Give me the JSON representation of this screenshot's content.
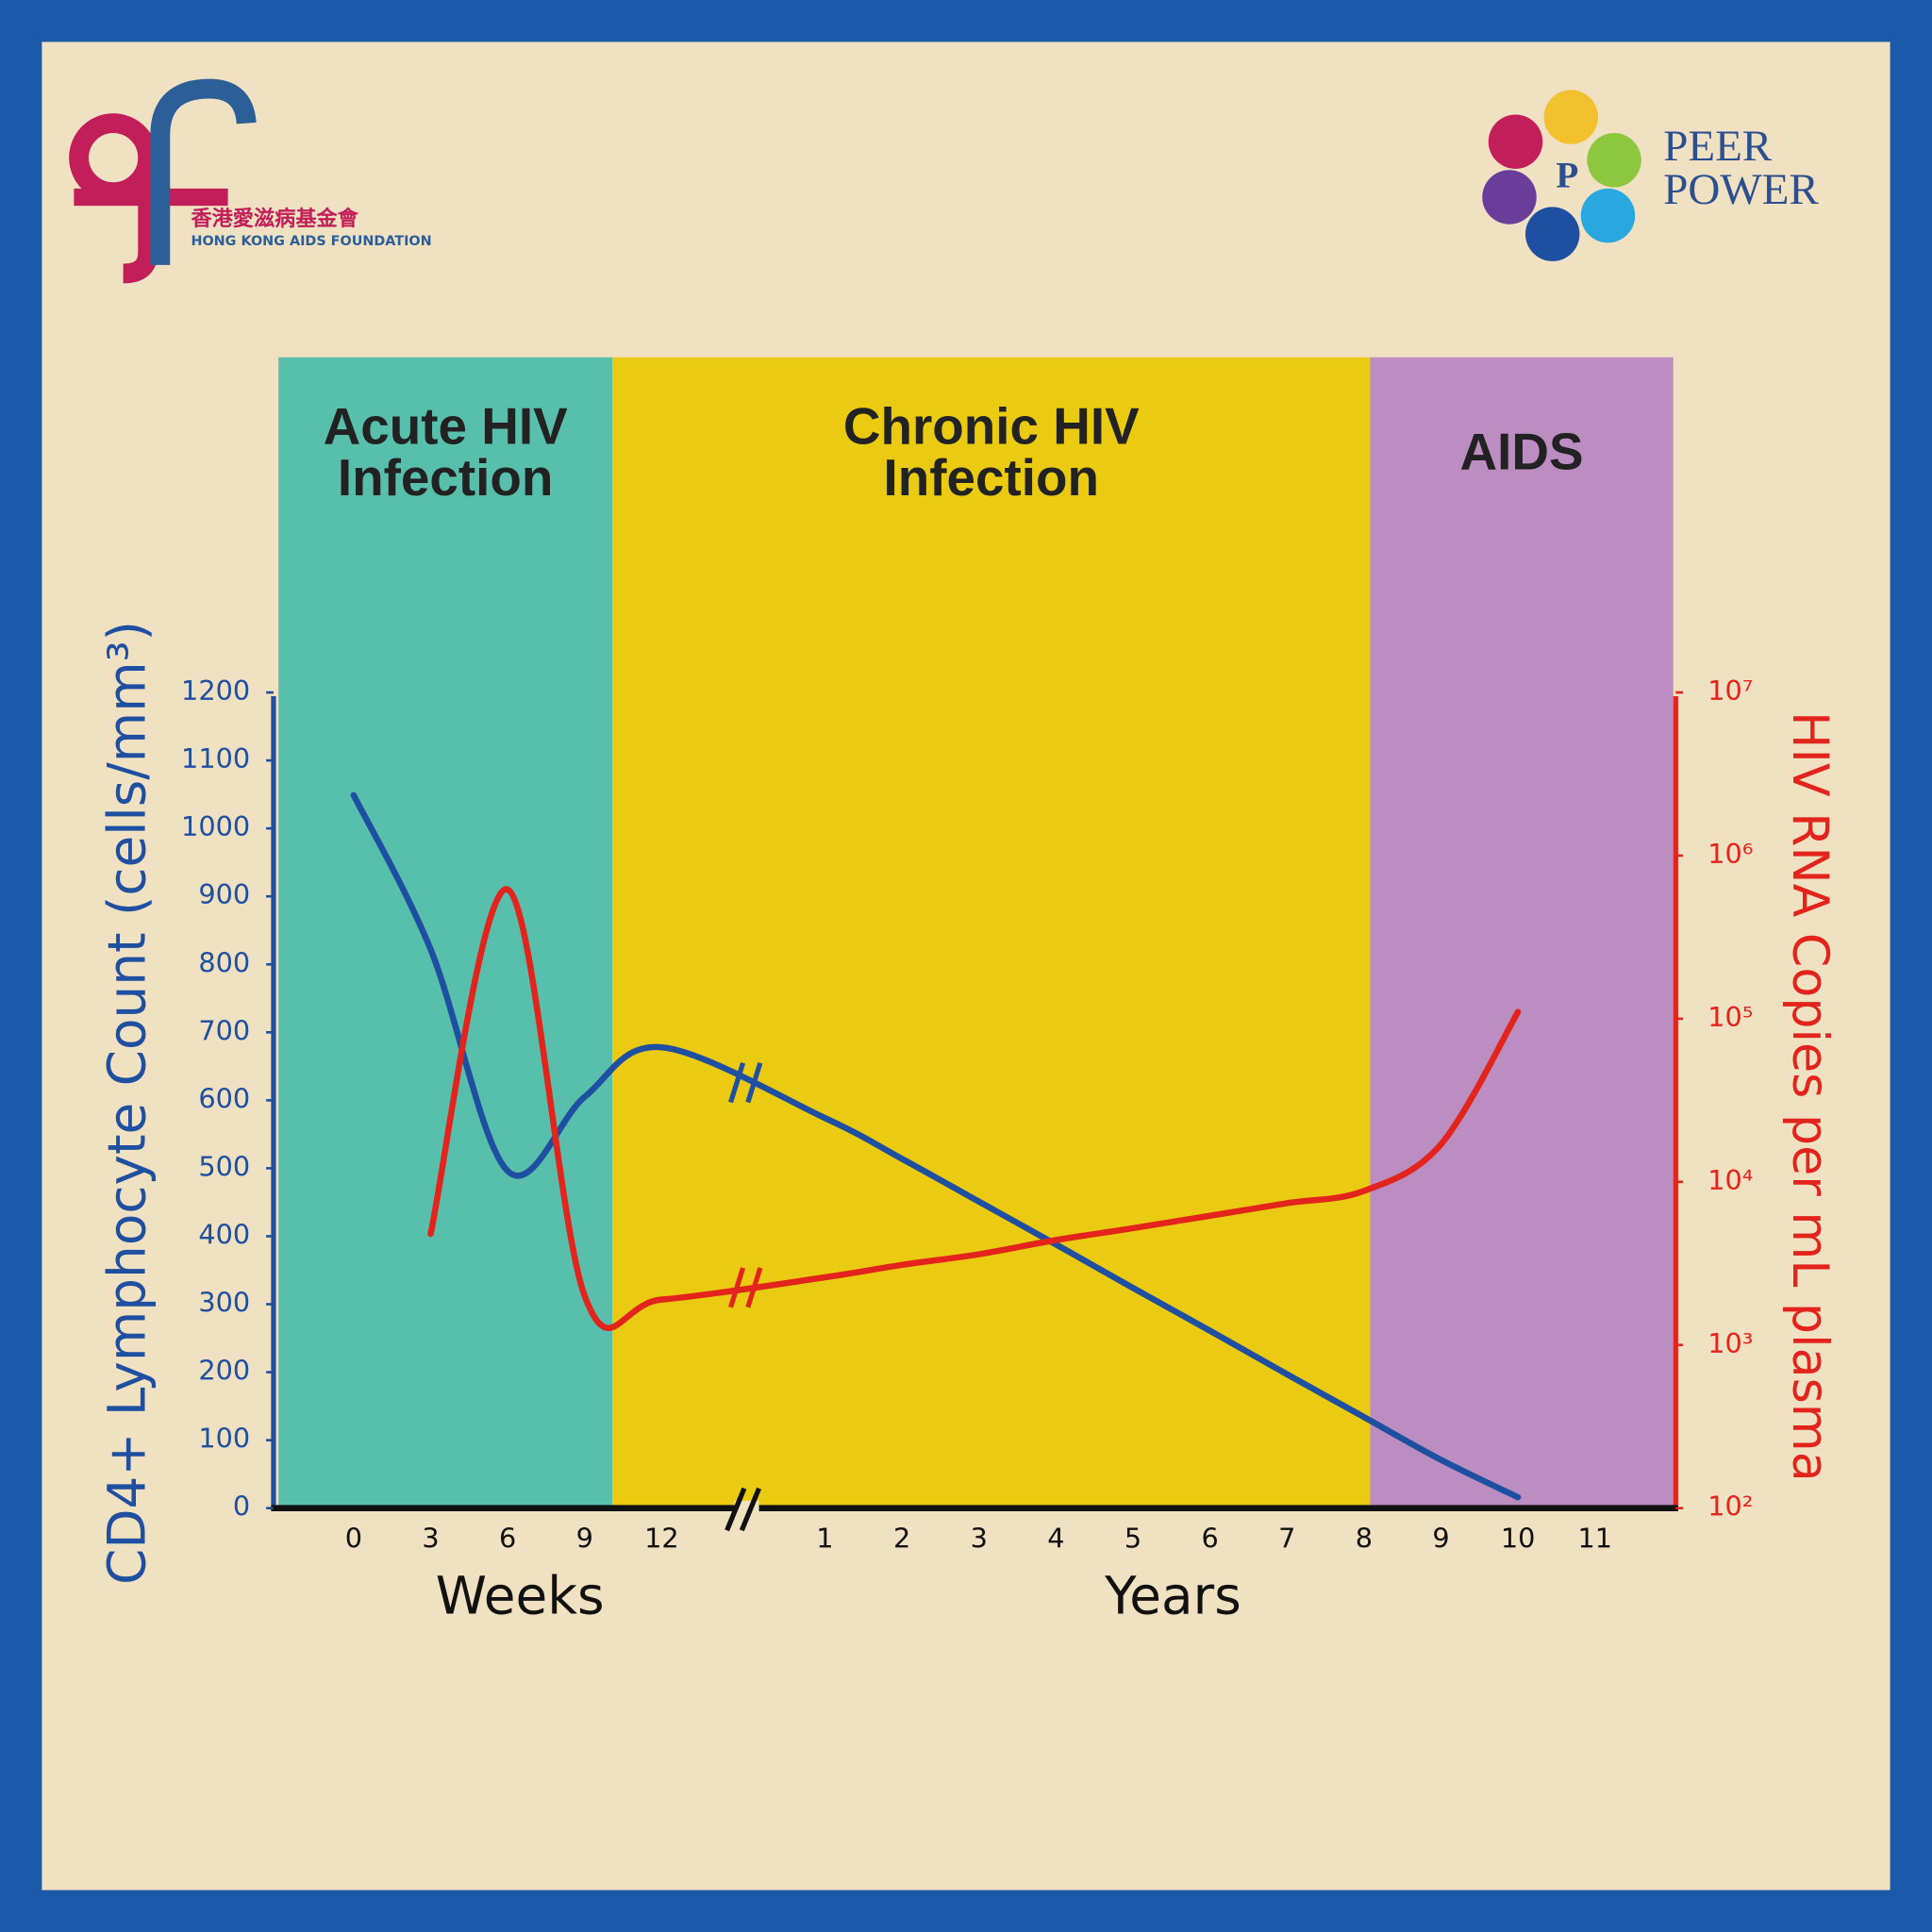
{
  "logos": {
    "hkaf_chinese": "香港愛滋病基金會",
    "hkaf_english": "HONG KONG AIDS FOUNDATION",
    "peer_power": [
      "PEER",
      "POWER"
    ]
  },
  "chart_data": {
    "type": "line",
    "phases": [
      {
        "label": [
          "Acute HIV",
          "Infection"
        ],
        "color": "#58bfad"
      },
      {
        "label": [
          "Chronic HIV",
          "Infection"
        ],
        "color": "#ebcb12"
      },
      {
        "label": [
          "AIDS"
        ],
        "color": "#bb8dc1"
      }
    ],
    "categories": [
      "0",
      "3",
      "6",
      "9",
      "12",
      "1",
      "2",
      "3",
      "4",
      "5",
      "6",
      "7",
      "8",
      "9",
      "10",
      "11"
    ],
    "x_groups": [
      "Weeks",
      "Years"
    ],
    "ylabel": "CD4+ Lymphocyte Count (cells/mm³)",
    "y2label": "HIV RNA Copies per mL plasma",
    "ylim": [
      0,
      1200
    ],
    "yticks": [
      0,
      100,
      200,
      300,
      400,
      500,
      600,
      700,
      800,
      900,
      1000,
      1100,
      1200
    ],
    "y2lim": [
      100,
      10000000
    ],
    "y2scale": "log",
    "y2ticks": [
      {
        "value": 100,
        "label": "10²"
      },
      {
        "value": 1000,
        "label": "10³"
      },
      {
        "value": 10000,
        "label": "10⁴"
      },
      {
        "value": 100000,
        "label": "10⁵"
      },
      {
        "value": 1000000,
        "label": "10⁶"
      },
      {
        "value": 10000000,
        "label": "10⁷"
      }
    ],
    "series": [
      {
        "name": "CD4+ Lymphocyte Count",
        "color": "#1f4fa0",
        "values": [
          1049,
          822,
          496,
          605,
          678,
          574,
          514,
          451,
          388,
          324,
          261,
          197,
          134,
          71,
          16,
          null
        ]
      },
      {
        "name": "HIV RNA Copies",
        "color": "#e3241d",
        "axis": "y2",
        "values": [
          null,
          4800,
          620000,
          2000,
          1900,
          2600,
          3100,
          3600,
          4400,
          5200,
          6200,
          7400,
          8800,
          17000,
          110000,
          null
        ]
      }
    ]
  }
}
